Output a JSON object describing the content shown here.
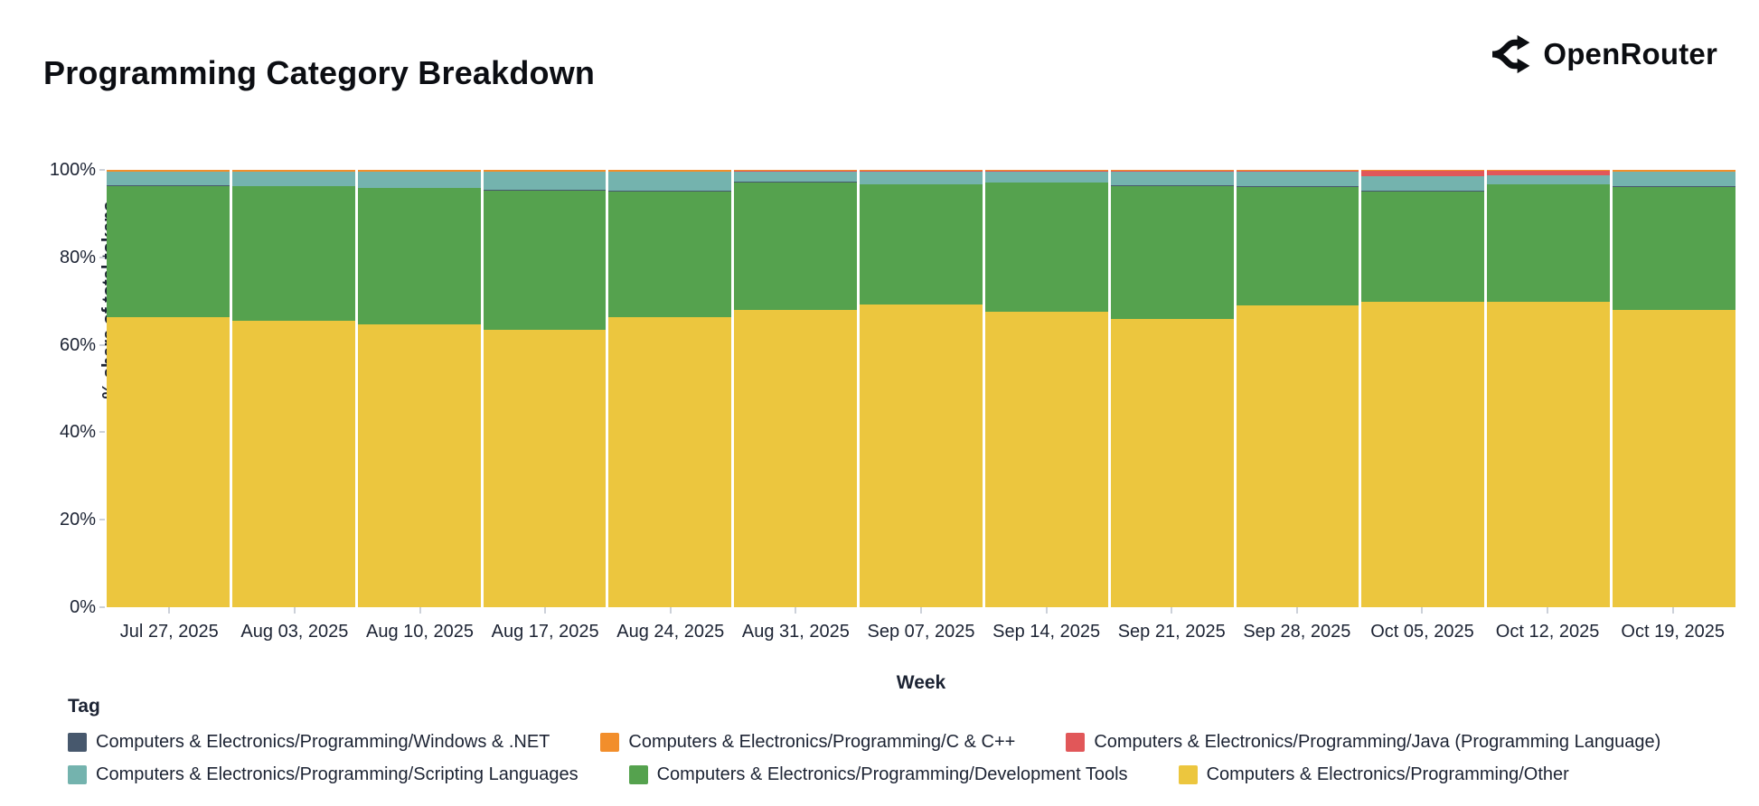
{
  "header": {
    "title": "Programming Category Breakdown",
    "brand": "OpenRouter"
  },
  "chart_data": {
    "type": "bar",
    "variant": "stacked-normalized",
    "title": "Programming Category Breakdown",
    "xlabel": "Week",
    "ylabel": "% share of total tokens",
    "ylim": [
      0,
      100
    ],
    "yticks": [
      "0%",
      "20%",
      "40%",
      "60%",
      "80%",
      "100%"
    ],
    "grid": false,
    "legend_title": "Tag",
    "legend_position": "bottom",
    "categories": [
      "Jul 27, 2025",
      "Aug 03, 2025",
      "Aug 10, 2025",
      "Aug 17, 2025",
      "Aug 24, 2025",
      "Aug 31, 2025",
      "Sep 07, 2025",
      "Sep 14, 2025",
      "Sep 21, 2025",
      "Sep 28, 2025",
      "Oct 05, 2025",
      "Oct 12, 2025",
      "Oct 19, 2025"
    ],
    "series": [
      {
        "key": "windows_net",
        "name": "Computers & Electronics/Programming/Windows & .NET",
        "color": "#47586d",
        "pattern": "dots",
        "values": [
          0.15,
          0.15,
          0.15,
          0.15,
          0.15,
          0.15,
          0.15,
          0.15,
          0.15,
          0.15,
          0.15,
          0.15,
          0.15
        ]
      },
      {
        "key": "c_cpp",
        "name": "Computers & Electronics/Programming/C & C++",
        "color": "#f28e2b",
        "pattern": "solid",
        "values": [
          0.4,
          0.4,
          0.4,
          0.4,
          0.4,
          0.3,
          0.3,
          0.3,
          0.3,
          0.3,
          0.15,
          0.15,
          0.4
        ]
      },
      {
        "key": "java",
        "name": "Computers & Electronics/Programming/Java (Programming Language)",
        "color": "#e15759",
        "pattern": "solid",
        "values": [
          0.05,
          0.05,
          0.05,
          0.05,
          0.05,
          0.05,
          0.05,
          0.05,
          0.05,
          0.05,
          1.4,
          1.1,
          0.05
        ]
      },
      {
        "key": "scripting",
        "name": "Computers & Electronics/Programming/Scripting Languages",
        "color": "#74b3ae",
        "pattern": "solid",
        "values": [
          3.1,
          3.2,
          3.6,
          4.1,
          4.4,
          2.4,
          2.9,
          2.5,
          3.2,
          3.4,
          3.2,
          2.0,
          3.3
        ]
      },
      {
        "key": "dev_tools",
        "name": "Computers & Electronics/Programming/Development Tools",
        "color": "#55a24e",
        "pattern": "solid",
        "values": [
          29.9,
          30.8,
          31.2,
          31.8,
          28.7,
          29.2,
          27.3,
          29.5,
          30.5,
          27.1,
          25.3,
          26.8,
          28.2
        ]
      },
      {
        "key": "other",
        "name": "Computers & Electronics/Programming/Other",
        "color": "#ecc63e",
        "pattern": "solid",
        "values": [
          66.4,
          65.4,
          64.6,
          63.5,
          66.3,
          67.9,
          69.3,
          67.5,
          65.8,
          69.0,
          69.8,
          69.8,
          67.9
        ]
      }
    ],
    "stack_bottom_to_top": [
      "other",
      "dev_tools",
      "windows_net",
      "scripting",
      "java",
      "c_cpp"
    ]
  }
}
